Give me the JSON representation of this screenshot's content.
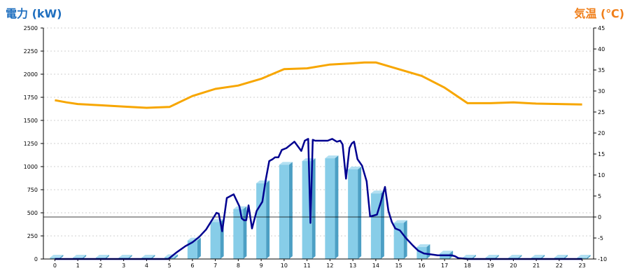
{
  "chart_data": {
    "type": "bar",
    "y_left_title": "電力 (kW)",
    "y_right_title": "気温 (℃)",
    "colors": {
      "y_left_title": "#1f6fbf",
      "y_right_title": "#f07f1a",
      "bar_front": "#87cde8",
      "bar_side": "#4c9fc4",
      "bar_top": "#b2e0f2",
      "power_line": "#000090",
      "temp_line": "#f7a600",
      "zero_line": "#000000"
    },
    "y_left_range": [
      0,
      2500
    ],
    "y_left_ticks": [
      "0",
      "250",
      "500",
      "750",
      "1000",
      "1250",
      "1500",
      "1750",
      "2000",
      "2250",
      "2500"
    ],
    "y_right_range": [
      -10,
      45
    ],
    "y_right_ticks": [
      "-10",
      "-5",
      "0",
      "5",
      "10",
      "15",
      "20",
      "25",
      "30",
      "35",
      "40",
      "45"
    ],
    "categories": [
      "0",
      "1",
      "2",
      "3",
      "4",
      "5",
      "6",
      "7",
      "8",
      "9",
      "10",
      "11",
      "12",
      "13",
      "14",
      "15",
      "16",
      "17",
      "18",
      "19",
      "20",
      "21",
      "22",
      "23"
    ],
    "grid": true,
    "series": [
      {
        "kind": "bar",
        "axis": "left",
        "values": [
          0,
          0,
          0,
          0,
          0,
          20,
          200,
          400,
          540,
          820,
          1020,
          1060,
          1090,
          970,
          710,
          390,
          130,
          60,
          0,
          0,
          0,
          0,
          0,
          0
        ]
      },
      {
        "kind": "line",
        "axis": "left",
        "x": [
          0,
          1,
          2,
          3,
          4,
          4.95,
          5.3,
          5.7,
          6.0,
          6.3,
          6.6,
          6.85,
          7.05,
          7.15,
          7.3,
          7.5,
          7.8,
          8.05,
          8.15,
          8.25,
          8.35,
          8.45,
          8.6,
          8.8,
          9.05,
          9.2,
          9.35,
          9.5,
          9.6,
          9.75,
          9.9,
          10.1,
          10.3,
          10.45,
          10.6,
          10.75,
          10.9,
          11.05,
          11.15,
          11.25,
          11.35,
          11.5,
          11.7,
          11.9,
          12.1,
          12.3,
          12.45,
          12.55,
          12.7,
          12.85,
          12.95,
          13.05,
          13.2,
          13.4,
          13.6,
          13.75,
          13.9,
          14.05,
          14.2,
          14.4,
          14.55,
          14.7,
          14.85,
          15.05,
          15.3,
          15.6,
          15.85,
          16.1,
          16.4,
          16.7,
          17.0,
          17.3,
          17.45,
          17.6,
          18,
          19,
          20,
          21,
          22,
          23
        ],
        "values": [
          0,
          0,
          0,
          0,
          0,
          0,
          70,
          140,
          180,
          240,
          320,
          420,
          500,
          490,
          300,
          660,
          700,
          570,
          440,
          420,
          420,
          580,
          330,
          520,
          620,
          860,
          1060,
          1080,
          1100,
          1100,
          1180,
          1200,
          1240,
          1270,
          1220,
          1170,
          1280,
          1300,
          390,
          1290,
          1280,
          1280,
          1280,
          1280,
          1300,
          1270,
          1280,
          1240,
          870,
          1200,
          1250,
          1270,
          1080,
          1010,
          840,
          460,
          470,
          480,
          600,
          780,
          520,
          400,
          330,
          310,
          230,
          150,
          90,
          60,
          50,
          40,
          40,
          40,
          30,
          10,
          0,
          0,
          0,
          0,
          0,
          0
        ]
      },
      {
        "kind": "line",
        "axis": "right",
        "x": [
          0,
          0.5,
          1,
          2,
          3,
          4,
          5,
          6,
          7,
          8,
          9,
          10,
          11,
          12,
          13,
          13.5,
          14,
          15,
          16,
          17,
          18,
          19,
          20,
          21,
          22,
          23
        ],
        "values": [
          27.8,
          27.3,
          26.9,
          26.6,
          26.3,
          26.0,
          26.2,
          28.8,
          30.5,
          31.3,
          32.9,
          35.2,
          35.4,
          36.3,
          36.6,
          36.8,
          36.8,
          35.2,
          33.6,
          30.8,
          27.1,
          27.1,
          27.3,
          27.0,
          26.9,
          26.8
        ]
      }
    ]
  }
}
